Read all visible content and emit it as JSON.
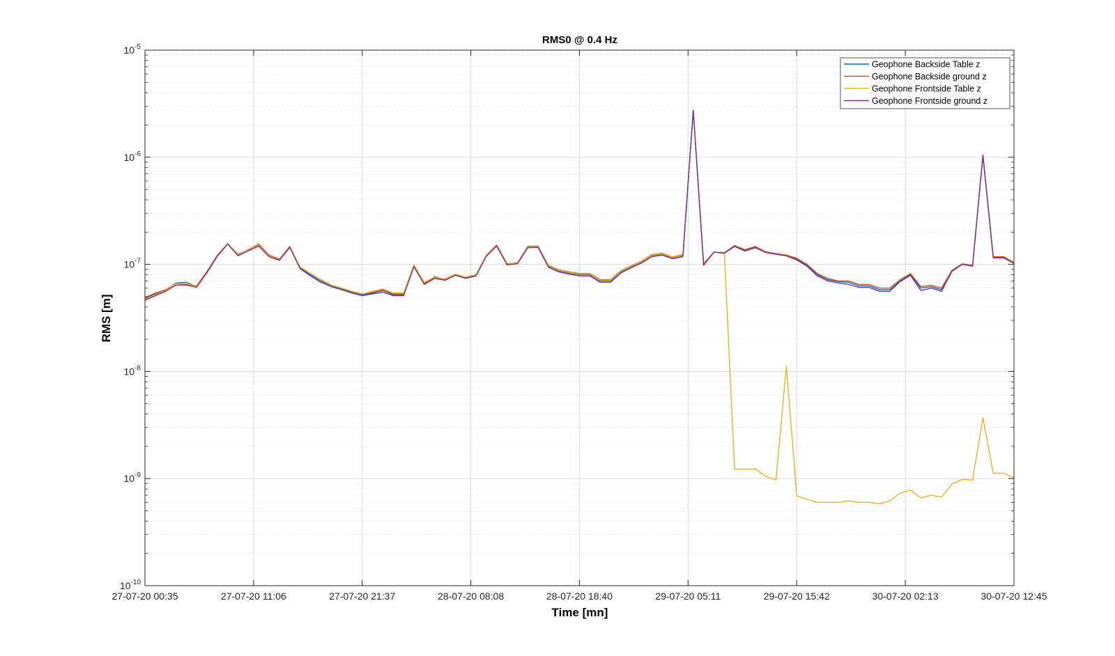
{
  "chart_data": {
    "type": "line",
    "title": "RMS0 @ 0.4 Hz",
    "xlabel": "Time [mn]",
    "ylabel": "RMS [m]",
    "y_scale": "log",
    "ylim": [
      1e-10,
      1e-05
    ],
    "y_ticks": [
      {
        "base": "10",
        "exp": "-10",
        "value": 1e-10
      },
      {
        "base": "10",
        "exp": "-9",
        "value": 1e-09
      },
      {
        "base": "10",
        "exp": "-8",
        "value": 1e-08
      },
      {
        "base": "10",
        "exp": "-7",
        "value": 1e-07
      },
      {
        "base": "10",
        "exp": "-6",
        "value": 1e-06
      },
      {
        "base": "10",
        "exp": "-5",
        "value": 1e-05
      }
    ],
    "x_ticks": [
      "27-07-20 00:35",
      "27-07-20 11:06",
      "27-07-20 21:37",
      "28-07-20 08:08",
      "28-07-20 18:40",
      "29-07-20 05:11",
      "29-07-20 15:42",
      "30-07-20 02:13",
      "30-07-20 12:45"
    ],
    "xlim": [
      "27-07-20 00:35",
      "30-07-20 12:45"
    ],
    "x_step_minutes": 30,
    "grid": true,
    "minor_grid": true,
    "legend_position": "top-right",
    "colors": {
      "series1": "#0072BD",
      "series2": "#D95319",
      "series3": "#EDB120",
      "series4": "#7E2F8E"
    },
    "series": [
      {
        "name": "Geophone Backside Table z",
        "color": "#0072BD",
        "values": [
          4.8e-08,
          5.3e-08,
          5.7e-08,
          6.7e-08,
          6.8e-08,
          6.2e-08,
          8.5e-08,
          1.2e-07,
          1.55e-07,
          1.25e-07,
          1.35e-07,
          1.5e-07,
          1.2e-07,
          1.1e-07,
          1.45e-07,
          9.3e-08,
          8e-08,
          7e-08,
          6.3e-08,
          5.9e-08,
          5.5e-08,
          5.2e-08,
          5.4e-08,
          5.7e-08,
          5.2e-08,
          5.2e-08,
          9.6e-08,
          6.6e-08,
          7.7e-08,
          7.2e-08,
          8e-08,
          7.5e-08,
          7.9e-08,
          1.2e-07,
          1.5e-07,
          1e-07,
          1.02e-07,
          1.45e-07,
          1.45e-07,
          9.6e-08,
          8.7e-08,
          8.3e-08,
          8e-08,
          8e-08,
          7e-08,
          7e-08,
          8.5e-08,
          9.5e-08,
          1.05e-07,
          1.2e-07,
          1.25e-07,
          1.15e-07,
          1.2e-07,
          2.7e-06,
          1e-07,
          1.3e-07,
          1.28e-07,
          1.48e-07,
          1.35e-07,
          1.45e-07,
          1.3e-07,
          1.25e-07,
          1.22e-07,
          1.12e-07,
          9.8e-08,
          8e-08,
          7.2e-08,
          6.9e-08,
          6.8e-08,
          6.3e-08,
          6.3e-08,
          5.8e-08,
          5.8e-08,
          7e-08,
          8e-08,
          6e-08,
          6.2e-08,
          5.8e-08,
          8.7e-08,
          1e-07,
          9.7e-08,
          1.03e-06,
          1.17e-07,
          1.17e-07,
          1.03e-07
        ]
      },
      {
        "name": "Geophone Backside ground z",
        "color": "#D95319",
        "values": [
          4.9e-08,
          5.4e-08,
          5.8e-08,
          6.6e-08,
          6.5e-08,
          6.3e-08,
          8.6e-08,
          1.22e-07,
          1.56e-07,
          1.22e-07,
          1.37e-07,
          1.55e-07,
          1.22e-07,
          1.12e-07,
          1.47e-07,
          9.4e-08,
          8.2e-08,
          7.2e-08,
          6.4e-08,
          6e-08,
          5.6e-08,
          5.3e-08,
          5.5e-08,
          5.8e-08,
          5.3e-08,
          5.3e-08,
          9.8e-08,
          6.7e-08,
          7.5e-08,
          7.3e-08,
          8.1e-08,
          7.6e-08,
          8e-08,
          1.22e-07,
          1.52e-07,
          1.01e-07,
          1.03e-07,
          1.47e-07,
          1.48e-07,
          9.8e-08,
          8.9e-08,
          8.5e-08,
          8.2e-08,
          8.2e-08,
          7.2e-08,
          7.2e-08,
          8.7e-08,
          9.7e-08,
          1.07e-07,
          1.23e-07,
          1.27e-07,
          1.17e-07,
          1.23e-07,
          2.75e-06,
          1.02e-07,
          1.3e-07,
          1.28e-07,
          1.5e-07,
          1.37e-07,
          1.47e-07,
          1.31e-07,
          1.26e-07,
          1.22e-07,
          1.14e-07,
          1e-07,
          8.2e-08,
          7.4e-08,
          7e-08,
          7e-08,
          6.5e-08,
          6.5e-08,
          6e-08,
          6e-08,
          7.2e-08,
          8.2e-08,
          6.2e-08,
          6.4e-08,
          6e-08,
          8.8e-08,
          1.01e-07,
          9.8e-08,
          1.04e-06,
          1.18e-07,
          1.18e-07,
          1.04e-07
        ]
      },
      {
        "name": "Geophone Frontside Table z",
        "color": "#EDB120",
        "values": [
          4.7e-08,
          5.2e-08,
          5.7e-08,
          6.6e-08,
          6.6e-08,
          6.2e-08,
          8.4e-08,
          1.2e-07,
          1.55e-07,
          1.24e-07,
          1.35e-07,
          1.52e-07,
          1.2e-07,
          1.1e-07,
          1.45e-07,
          9.5e-08,
          8.2e-08,
          7.2e-08,
          6.4e-08,
          6e-08,
          5.6e-08,
          5.3e-08,
          5.6e-08,
          5.9e-08,
          5.4e-08,
          5.4e-08,
          9.9e-08,
          6.8e-08,
          7.6e-08,
          7.3e-08,
          8.1e-08,
          7.6e-08,
          8e-08,
          1.21e-07,
          1.5e-07,
          1e-07,
          1.02e-07,
          1.45e-07,
          1.46e-07,
          9.7e-08,
          8.8e-08,
          8.4e-08,
          8.1e-08,
          8.1e-08,
          7.1e-08,
          7.1e-08,
          8.6e-08,
          9.6e-08,
          1.06e-07,
          1.21e-07,
          1.26e-07,
          1.16e-07,
          1.21e-07,
          2.7e-06,
          1e-07,
          1.3e-07,
          1.3e-07,
          1.22e-09,
          1.22e-09,
          1.23e-09,
          1.05e-09,
          9.7e-10,
          1.12e-08,
          6.9e-10,
          6.4e-10,
          6e-10,
          6e-10,
          6e-10,
          6.2e-10,
          6e-10,
          6e-10,
          5.8e-10,
          6.2e-10,
          7.3e-10,
          7.8e-10,
          6.6e-10,
          7e-10,
          6.7e-10,
          8.9e-10,
          9.8e-10,
          9.7e-10,
          3.7e-09,
          1.12e-09,
          1.12e-09,
          1.02e-09
        ]
      },
      {
        "name": "Geophone Frontside ground z",
        "color": "#7E2F8E",
        "values": [
          4.6e-08,
          5.1e-08,
          5.6e-08,
          6.4e-08,
          6.4e-08,
          6.1e-08,
          8.4e-08,
          1.19e-07,
          1.55e-07,
          1.2e-07,
          1.34e-07,
          1.48e-07,
          1.18e-07,
          1.09e-07,
          1.44e-07,
          9.1e-08,
          7.8e-08,
          6.8e-08,
          6.2e-08,
          5.8e-08,
          5.4e-08,
          5.1e-08,
          5.3e-08,
          5.5e-08,
          5.1e-08,
          5.1e-08,
          9.5e-08,
          6.5e-08,
          7.4e-08,
          7.1e-08,
          7.9e-08,
          7.4e-08,
          7.8e-08,
          1.19e-07,
          1.48e-07,
          9.9e-08,
          1.01e-07,
          1.43e-07,
          1.44e-07,
          9.4e-08,
          8.5e-08,
          8.1e-08,
          7.8e-08,
          7.8e-08,
          6.8e-08,
          6.8e-08,
          8.3e-08,
          9.3e-08,
          1.03e-07,
          1.18e-07,
          1.22e-07,
          1.13e-07,
          1.18e-07,
          2.75e-06,
          9.8e-08,
          1.3e-07,
          1.27e-07,
          1.47e-07,
          1.33e-07,
          1.43e-07,
          1.29e-07,
          1.24e-07,
          1.2e-07,
          1.1e-07,
          9.6e-08,
          7.8e-08,
          7e-08,
          6.7e-08,
          6.5e-08,
          6.1e-08,
          6.1e-08,
          5.6e-08,
          5.6e-08,
          6.9e-08,
          7.9e-08,
          5.7e-08,
          6e-08,
          5.6e-08,
          8.6e-08,
          1e-07,
          9.6e-08,
          1.05e-06,
          1.15e-07,
          1.15e-07,
          1.02e-07
        ]
      }
    ]
  }
}
